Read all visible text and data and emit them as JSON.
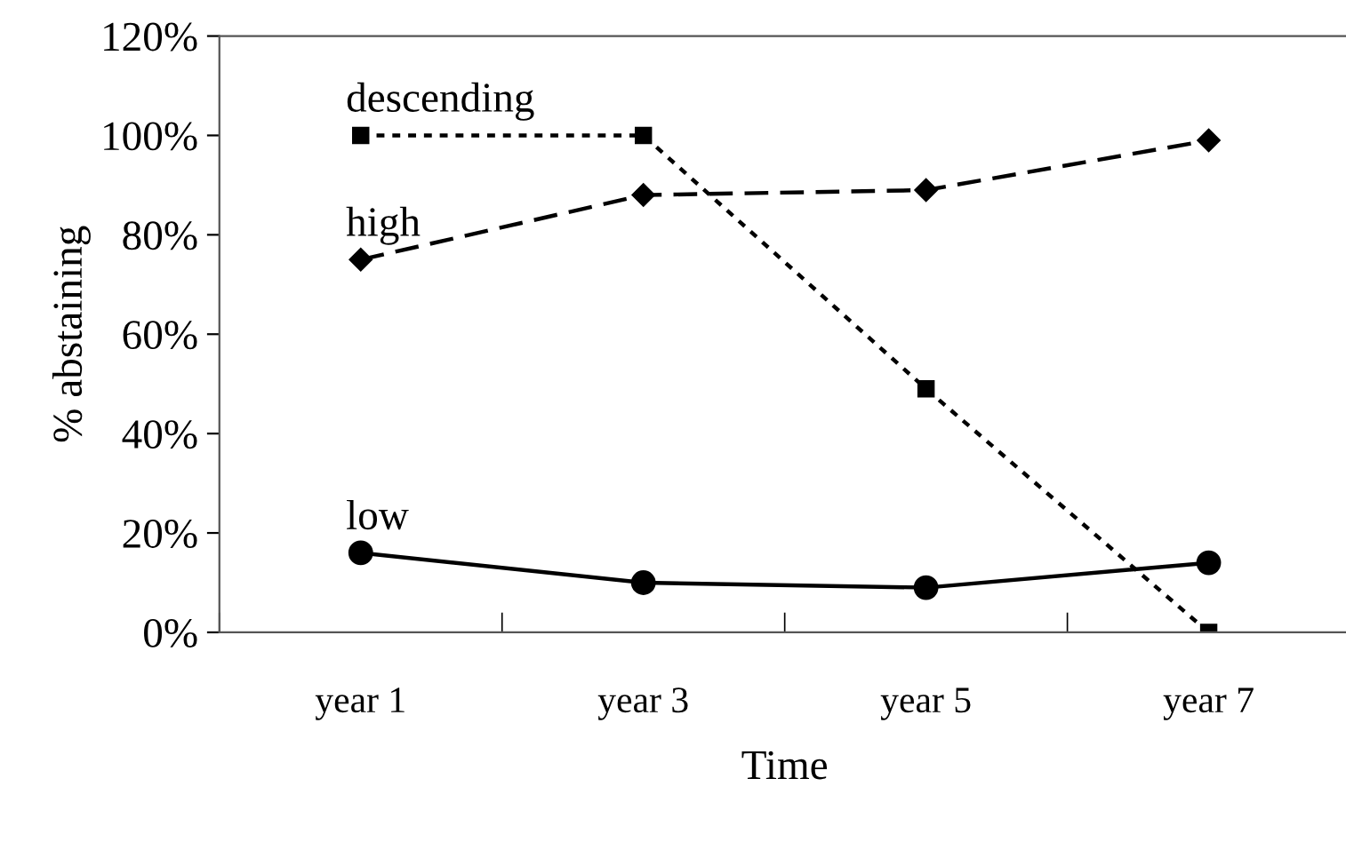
{
  "chart_data": {
    "type": "line",
    "xlabel": "Time",
    "ylabel": "% abstaining",
    "categories": [
      "year 1",
      "year 3",
      "year 5",
      "year 7"
    ],
    "ylim": [
      0,
      120
    ],
    "yticks": [
      {
        "value": 0,
        "label": "0%"
      },
      {
        "value": 20,
        "label": "20%"
      },
      {
        "value": 40,
        "label": "40%"
      },
      {
        "value": 60,
        "label": "60%"
      },
      {
        "value": 80,
        "label": "80%"
      },
      {
        "value": 100,
        "label": "100%"
      },
      {
        "value": 120,
        "label": "120%"
      }
    ],
    "grid": false,
    "legend": false,
    "series": [
      {
        "name": "descending",
        "color": "#000000",
        "values": [
          100,
          100,
          49,
          0
        ],
        "marker": "square",
        "line_style": "dotted"
      },
      {
        "name": "high",
        "color": "#000000",
        "values": [
          75,
          88,
          89,
          99
        ],
        "marker": "diamond",
        "line_style": "dashed"
      },
      {
        "name": "low",
        "color": "#000000",
        "values": [
          16,
          10,
          9,
          14
        ],
        "marker": "circle",
        "line_style": "solid"
      }
    ]
  }
}
